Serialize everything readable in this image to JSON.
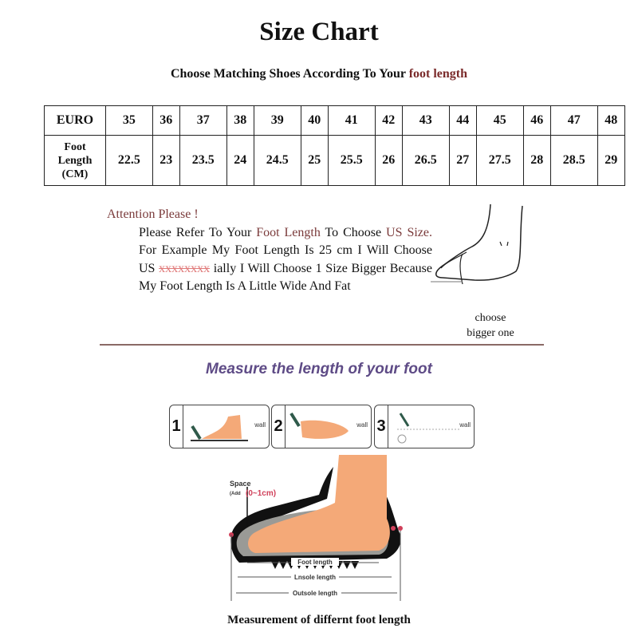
{
  "title": "Size Chart",
  "subtitle": {
    "prefix": "Choose Matching Shoes According To Your ",
    "highlight": "foot length"
  },
  "table": {
    "row1_header": "EURO",
    "row2_header": [
      "Foot",
      "Length",
      "(CM)"
    ],
    "euro": [
      "35",
      "36",
      "37",
      "38",
      "39",
      "40",
      "41",
      "42",
      "43",
      "44",
      "45",
      "46",
      "47",
      "48"
    ],
    "foot_length_cm": [
      "22.5",
      "23",
      "23.5",
      "24",
      "24.5",
      "25",
      "25.5",
      "26",
      "26.5",
      "27",
      "27.5",
      "28",
      "28.5",
      "29"
    ]
  },
  "attention": {
    "heading": "Attention Please !",
    "p1": "Please Refer To Your ",
    "p1_hl": "Foot Length",
    "p2": " To Choose ",
    "p2_hl": "US Size.",
    "p3": " For Example My Foot Length Is 25 cm I Will Choose US ",
    "p3_struck": "xxxxxxxx",
    "p4": " ially I Will Choose 1 Size Bigger Because My Foot Length Is A Little Wide And Fat"
  },
  "choose_note": [
    "choose",
    "bigger one"
  ],
  "measure_heading": "Measure the length of your foot",
  "steps": [
    {
      "num": "1",
      "wall": "wall"
    },
    {
      "num": "2",
      "wall": "wall"
    },
    {
      "num": "3",
      "wall": "wall"
    }
  ],
  "diagram": {
    "space": "Space",
    "add_prefix": "(Add",
    "add_range": "(0~1cm)",
    "foot_length": "Foot length",
    "insole_length": "Lnsole length",
    "outsole_length": "Outsole length"
  },
  "caption": "Measurement of differnt foot length",
  "colors": {
    "highlight": "#7a2a2a",
    "heading_purple": "#5e4b86",
    "foot": "#f4a978",
    "range_red": "#d0405a"
  }
}
